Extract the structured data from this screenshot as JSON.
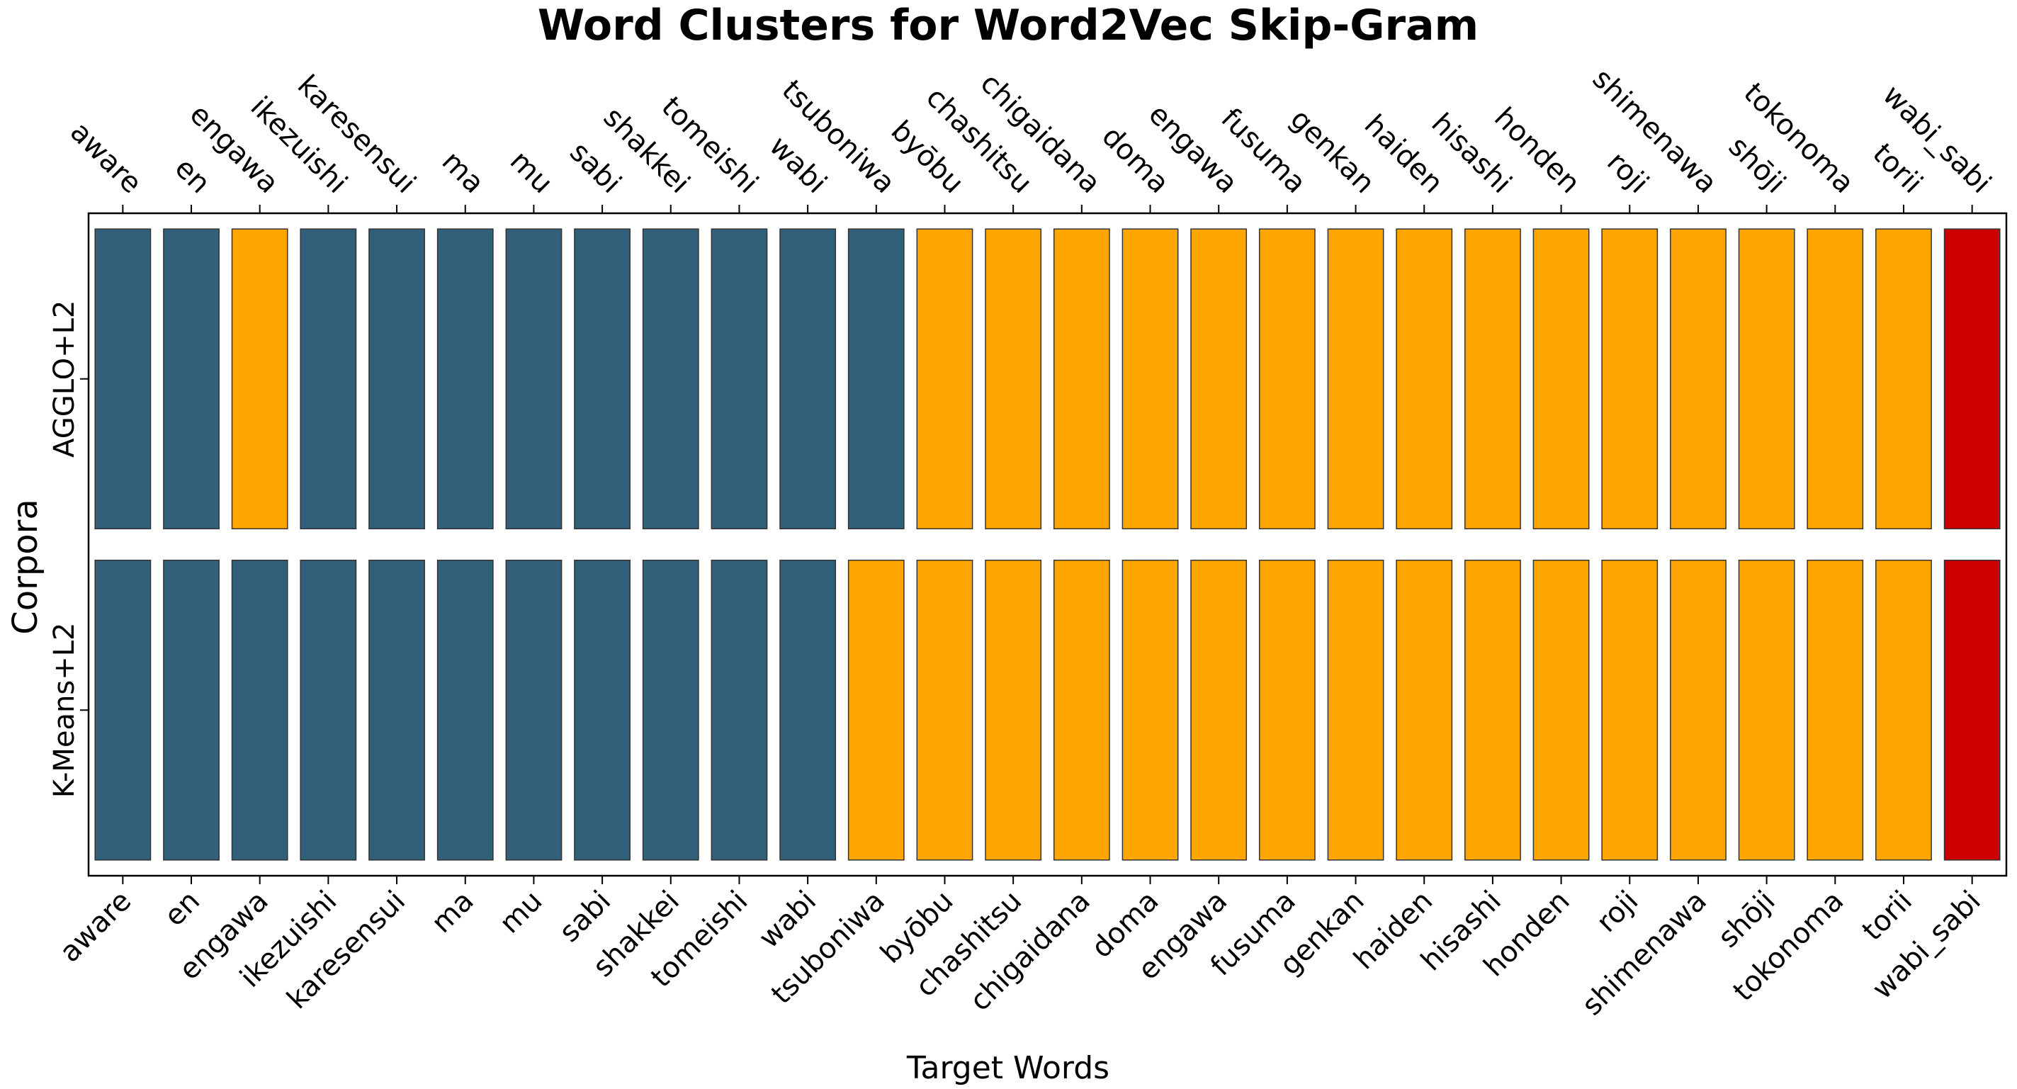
{
  "chart_data": {
    "type": "heatmap",
    "title": "Word Clusters for Word2Vec Skip-Gram",
    "xlabel": "Target Words",
    "ylabel": "Corpora",
    "grid": false,
    "legend": "none",
    "x_tick_positions": "top and bottom",
    "categories": [
      "aware",
      "en",
      "engawa",
      "ikezuishi",
      "karesensui",
      "ma",
      "mu",
      "sabi",
      "shakkei",
      "tomeishi",
      "wabi",
      "tsuboniwa",
      "byōbu",
      "chashitsu",
      "chigaidana",
      "doma",
      "engawa",
      "fusuma",
      "genkan",
      "haiden",
      "hisashi",
      "honden",
      "roji",
      "shimenawa",
      "shōji",
      "tokonoma",
      "torii",
      "wabi_sabi"
    ],
    "cluster_colors": [
      "#30607a",
      "#ffa500",
      "#cc0000"
    ],
    "bar_edge_color": "#333333",
    "series": [
      {
        "name": "AGGLO+L2",
        "values": [
          0,
          0,
          1,
          0,
          0,
          0,
          0,
          0,
          0,
          0,
          0,
          0,
          1,
          1,
          1,
          1,
          1,
          1,
          1,
          1,
          1,
          1,
          1,
          1,
          1,
          1,
          1,
          2
        ]
      },
      {
        "name": "K-Means+L2",
        "values": [
          0,
          0,
          0,
          0,
          0,
          0,
          0,
          0,
          0,
          0,
          0,
          1,
          1,
          1,
          1,
          1,
          1,
          1,
          1,
          1,
          1,
          1,
          1,
          1,
          1,
          1,
          1,
          2
        ]
      }
    ]
  }
}
